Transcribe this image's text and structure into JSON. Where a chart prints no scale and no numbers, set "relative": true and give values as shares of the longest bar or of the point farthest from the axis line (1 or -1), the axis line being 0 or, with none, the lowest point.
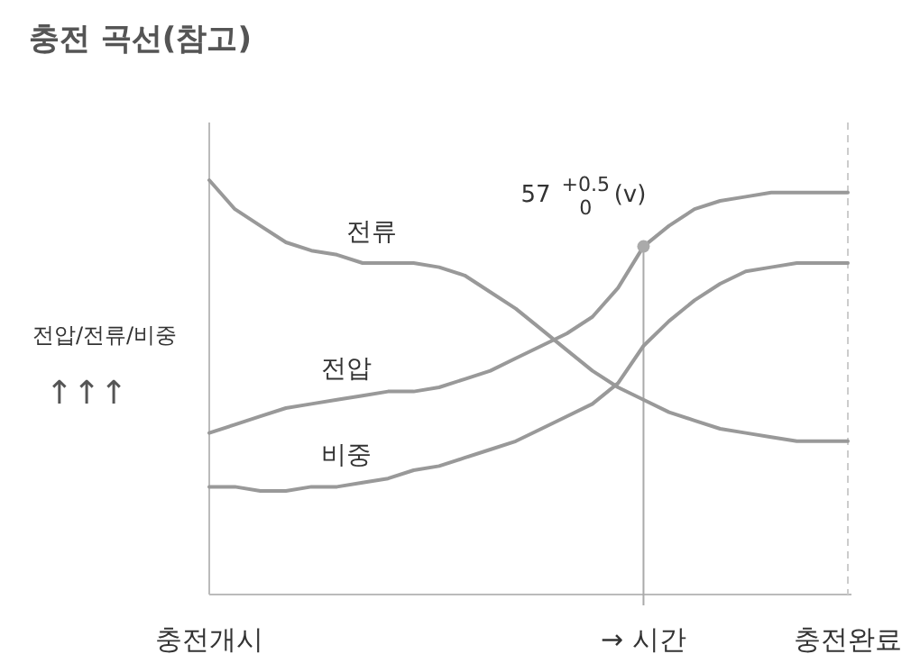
{
  "chart_data": {
    "type": "line",
    "title": "충전 곡선(참고)",
    "ylabel": "전압/전류/비중",
    "xlabel": "→ 시간",
    "relative": true,
    "categories": [
      "충전개시",
      null,
      null,
      null,
      null,
      null,
      null,
      null,
      null,
      null,
      null,
      null,
      null,
      null,
      null,
      null,
      null,
      null,
      null,
      null,
      null,
      null,
      null,
      null,
      null,
      "충전완료"
    ],
    "series": [
      {
        "name": "전류",
        "color": "#999999",
        "values": [
          1.0,
          0.93,
          0.89,
          0.85,
          0.83,
          0.82,
          0.8,
          0.8,
          0.8,
          0.79,
          0.77,
          0.73,
          0.69,
          0.64,
          0.59,
          0.54,
          0.5,
          0.47,
          0.44,
          0.42,
          0.4,
          0.39,
          0.38,
          0.37,
          0.37,
          0.37
        ]
      },
      {
        "name": "전압",
        "color": "#999999",
        "values": [
          0.39,
          0.41,
          0.43,
          0.45,
          0.46,
          0.47,
          0.48,
          0.49,
          0.49,
          0.5,
          0.52,
          0.54,
          0.57,
          0.6,
          0.63,
          0.67,
          0.74,
          0.84,
          0.89,
          0.93,
          0.95,
          0.96,
          0.97,
          0.97,
          0.97,
          0.97
        ]
      },
      {
        "name": "비중",
        "color": "#999999",
        "values": [
          0.26,
          0.26,
          0.25,
          0.25,
          0.26,
          0.26,
          0.27,
          0.28,
          0.3,
          0.31,
          0.33,
          0.35,
          0.37,
          0.4,
          0.43,
          0.46,
          0.51,
          0.6,
          0.66,
          0.71,
          0.75,
          0.78,
          0.79,
          0.8,
          0.8,
          0.8
        ]
      }
    ],
    "annotations": [
      "57$^{+0.5}$$_{0}$ (v)",
      "↑↑↑"
    ],
    "marker": "none",
    "line_style": "solid"
  }
}
